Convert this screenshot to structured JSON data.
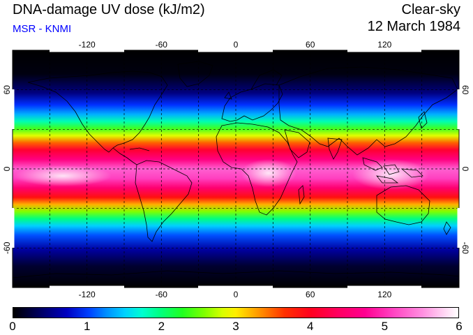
{
  "header": {
    "title": "DNA-damage UV dose (kJ/m2)",
    "subtitle": "MSR - KNMI",
    "condition": "Clear-sky",
    "date": "12 March 1984"
  },
  "map": {
    "longitude_ticks": [
      "-120",
      "-60",
      "0",
      "60",
      "120"
    ],
    "latitude_ticks": [
      "60",
      "0",
      "-60"
    ],
    "lon_range": [
      -180,
      180
    ],
    "lat_range": [
      -90,
      90
    ],
    "grid_lines": "dashed every 30 degrees"
  },
  "colorbar": {
    "labels": [
      "0",
      "1",
      "2",
      "3",
      "4",
      "5",
      "6"
    ],
    "range": [
      0,
      6
    ],
    "unit": "kJ/m2"
  }
}
